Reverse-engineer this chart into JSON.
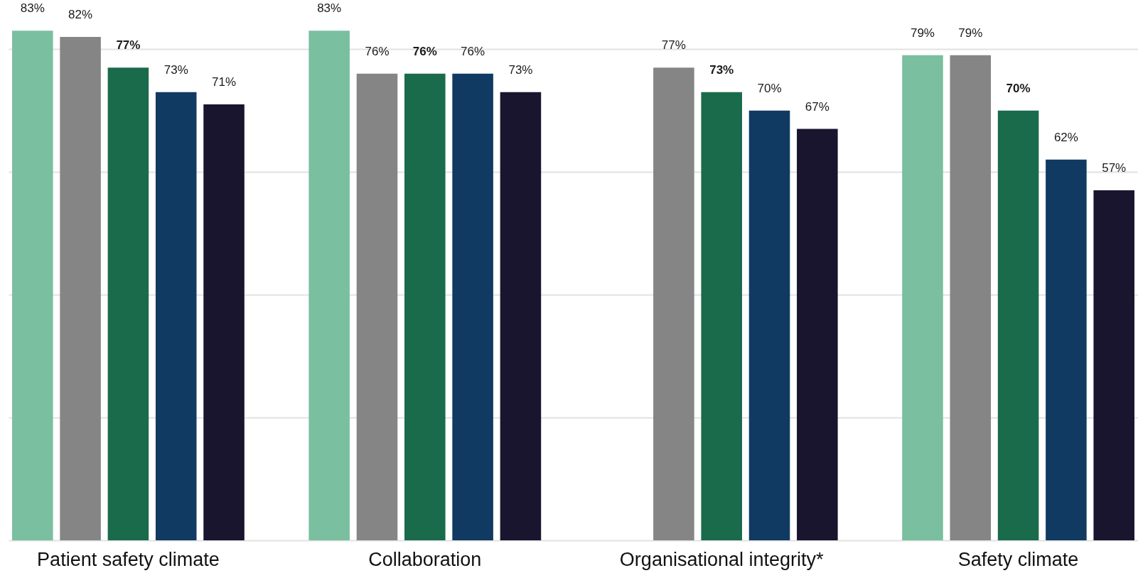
{
  "chart_data": {
    "type": "bar",
    "categories": [
      "Patient safety climate",
      "Collaboration",
      "Organisational integrity*",
      "Safety climate"
    ],
    "series": [
      {
        "color": "#7abf9f",
        "values": [
          83,
          83,
          null,
          79
        ],
        "value_labels": [
          "83%",
          "83%",
          null,
          "79%"
        ]
      },
      {
        "color": "#858585",
        "values": [
          82,
          76,
          77,
          79
        ],
        "value_labels": [
          "82%",
          "76%",
          "77%",
          "79%"
        ]
      },
      {
        "color": "#1a6a4c",
        "values": [
          77,
          76,
          73,
          70
        ],
        "value_labels": [
          "77%",
          "76%",
          "73%",
          "70%"
        ]
      },
      {
        "color": "#113a63",
        "values": [
          73,
          76,
          70,
          62
        ],
        "value_labels": [
          "73%",
          "76%",
          "70%",
          "62%"
        ]
      },
      {
        "color": "#19152f",
        "values": [
          71,
          73,
          67,
          57
        ],
        "value_labels": [
          "71%",
          "73%",
          "67%",
          "57%"
        ]
      }
    ],
    "ylim": [
      0,
      88
    ],
    "yticks": [
      {
        "value": 0,
        "label": null
      },
      {
        "value": 20,
        "label": null
      },
      {
        "value": 40,
        "label": null
      },
      {
        "value": 60,
        "label": null
      },
      {
        "value": 80,
        "label": null
      }
    ],
    "grid": "y",
    "tick_labels": "x"
  }
}
